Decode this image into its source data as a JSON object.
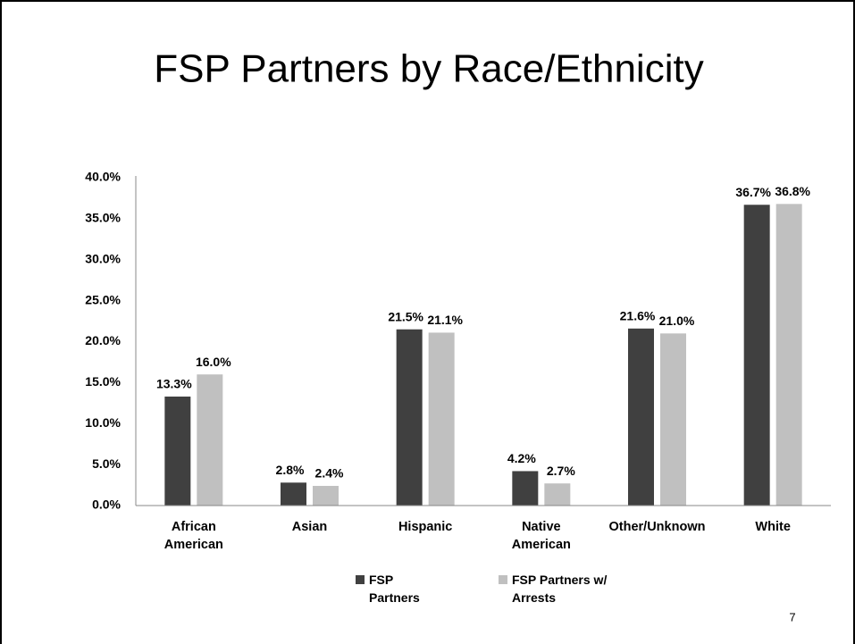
{
  "chart_data": {
    "type": "bar",
    "title": "FSP Partners by Race/Ethnicity",
    "categories": [
      "African American",
      "Asian",
      "Hispanic",
      "Native American",
      "Other/Unknown",
      "White"
    ],
    "series": [
      {
        "name": "FSP Partners",
        "color": "#404040",
        "values": [
          13.3,
          2.8,
          21.5,
          4.2,
          21.6,
          36.7
        ],
        "value_labels": [
          "13.3%",
          "2.8%",
          "21.5%",
          "4.2%",
          "21.6%",
          "36.7%"
        ]
      },
      {
        "name": "FSP Partners w/ Arrests",
        "color": "#c0c0c0",
        "values": [
          16.0,
          2.4,
          21.1,
          2.7,
          21.0,
          36.8
        ],
        "value_labels": [
          "16.0%",
          "2.4%",
          "21.1%",
          "2.7%",
          "21.0%",
          "36.8%"
        ]
      }
    ],
    "ylim": [
      0,
      40
    ],
    "yticks": [
      {
        "value": 0,
        "label": "0.0%"
      },
      {
        "value": 5,
        "label": "5.0%"
      },
      {
        "value": 10,
        "label": "10.0%"
      },
      {
        "value": 15,
        "label": "15.0%"
      },
      {
        "value": 20,
        "label": "20.0%"
      },
      {
        "value": 25,
        "label": "25.0%"
      },
      {
        "value": 30,
        "label": "30.0%"
      },
      {
        "value": 35,
        "label": "35.0%"
      },
      {
        "value": 40,
        "label": "40.0%"
      }
    ],
    "legend": "bottom",
    "page_number": "7"
  }
}
